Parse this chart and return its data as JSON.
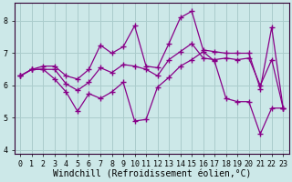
{
  "xlabel": "Windchill (Refroidissement éolien,°C)",
  "background_color": "#cce8e8",
  "grid_color": "#aacccc",
  "line_color": "#880088",
  "x": [
    0,
    1,
    2,
    3,
    4,
    5,
    6,
    7,
    8,
    9,
    10,
    11,
    12,
    13,
    14,
    15,
    16,
    17,
    18,
    19,
    20,
    21,
    22,
    23
  ],
  "y_top": [
    6.3,
    6.5,
    6.6,
    6.6,
    6.3,
    6.2,
    6.5,
    7.25,
    7.0,
    7.2,
    7.85,
    6.6,
    6.55,
    7.3,
    8.1,
    8.3,
    7.1,
    7.05,
    7.0,
    7.0,
    7.0,
    5.9,
    7.8,
    5.3
  ],
  "y_mid": [
    6.3,
    6.5,
    6.5,
    6.5,
    6.05,
    5.85,
    6.1,
    6.55,
    6.4,
    6.65,
    6.6,
    6.5,
    6.3,
    6.8,
    7.05,
    7.3,
    6.85,
    6.8,
    6.85,
    6.8,
    6.85,
    6.0,
    6.8,
    5.3
  ],
  "y_bot": [
    6.3,
    6.5,
    6.5,
    6.2,
    5.8,
    5.2,
    5.75,
    5.6,
    5.8,
    6.1,
    4.9,
    4.95,
    5.95,
    6.25,
    6.6,
    6.8,
    7.05,
    6.75,
    5.6,
    5.5,
    5.5,
    4.5,
    5.3,
    5.3
  ],
  "ylim": [
    3.9,
    8.55
  ],
  "xlim_min": -0.5,
  "xlim_max": 23.5,
  "yticks": [
    4,
    5,
    6,
    7,
    8
  ],
  "xticks": [
    0,
    1,
    2,
    3,
    4,
    5,
    6,
    7,
    8,
    9,
    10,
    11,
    12,
    13,
    14,
    15,
    16,
    17,
    18,
    19,
    20,
    21,
    22,
    23
  ],
  "tick_font_size": 6.0,
  "xlabel_font_size": 7.0,
  "marker": "+",
  "markersize": 4,
  "linewidth": 0.9
}
